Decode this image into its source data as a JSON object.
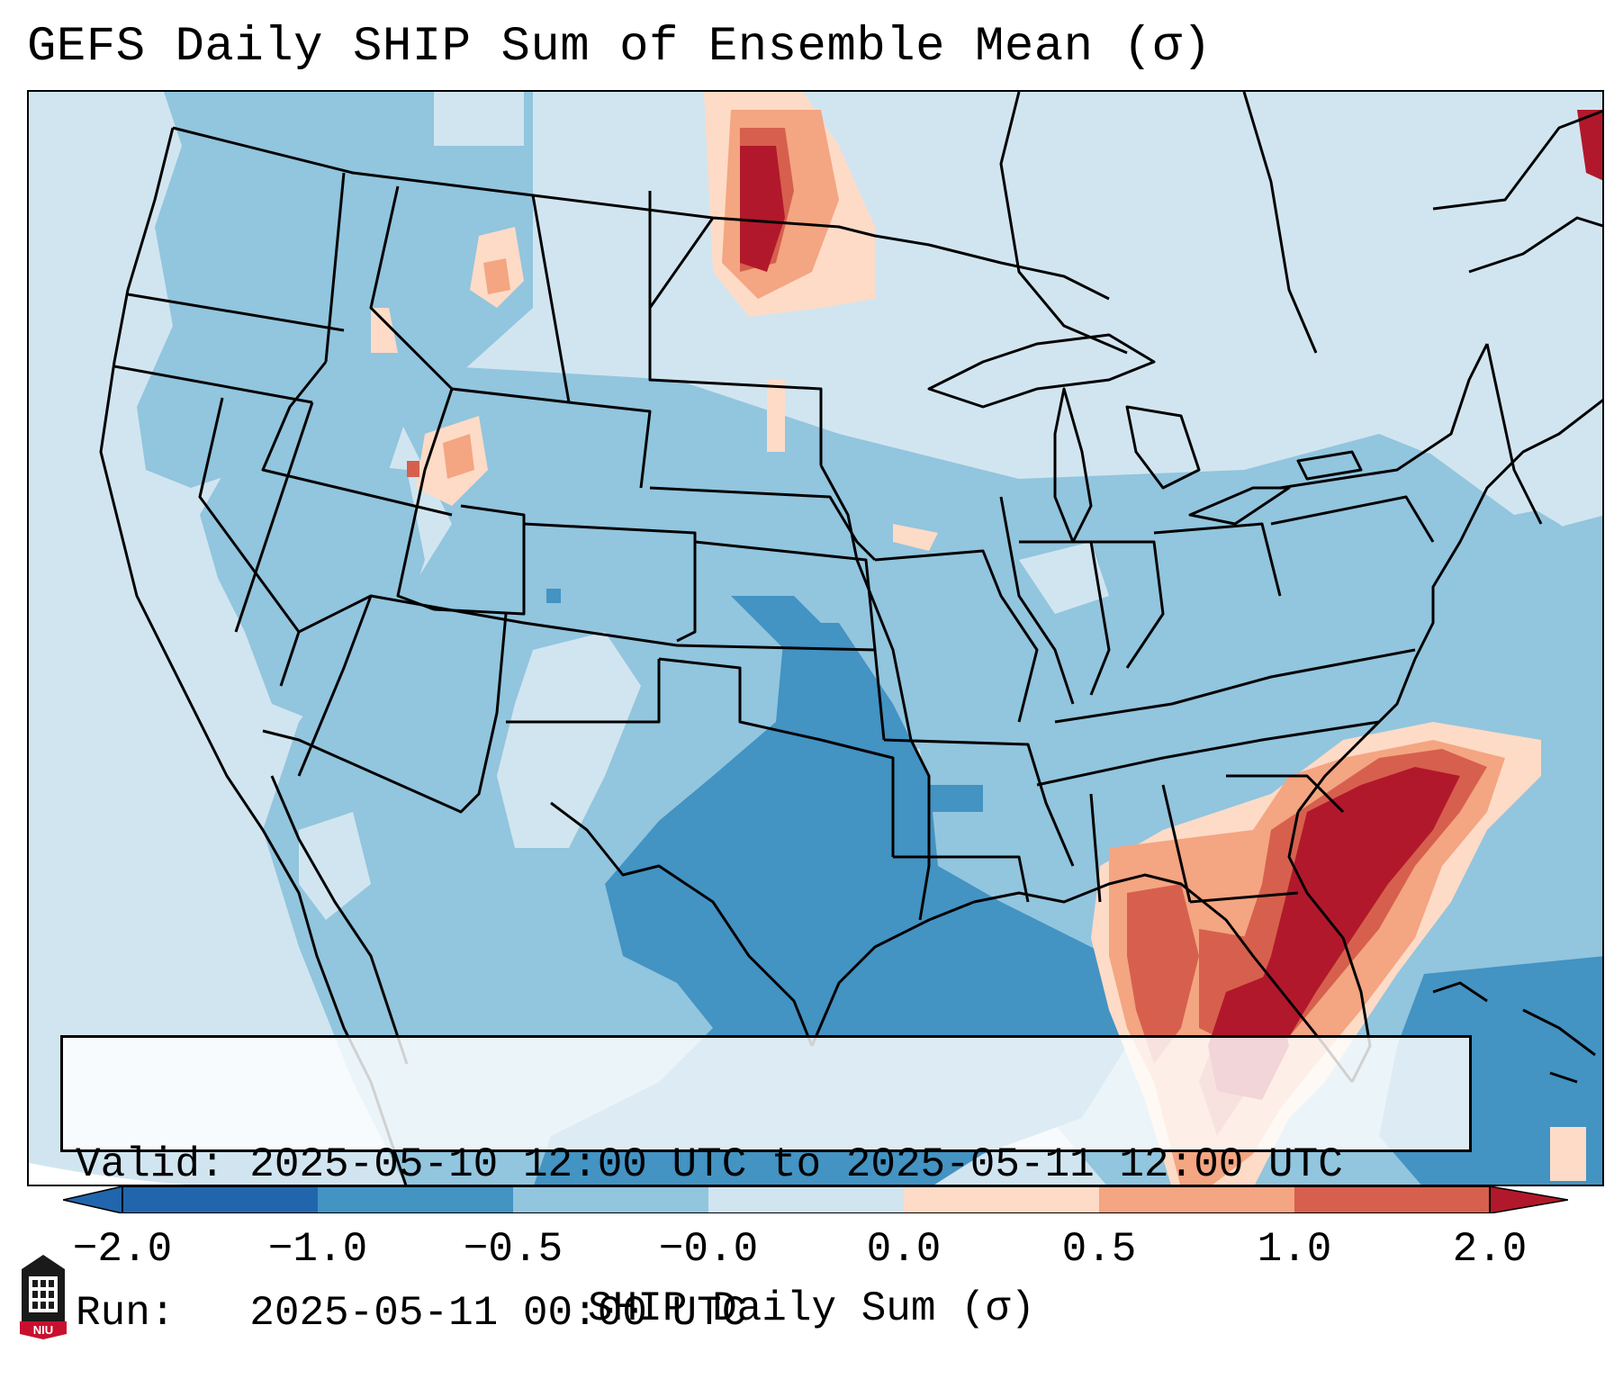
{
  "title": "GEFS Daily SHIP Sum of Ensemble Mean (σ)",
  "info": {
    "valid_line": "Valid: 2025-05-10 12:00 UTC to 2025-05-11 12:00 UTC",
    "run_line": "Run:   2025-05-11 00:00 UTC"
  },
  "colorbar": {
    "label": "SHIP Daily Sum (σ)",
    "ticks": [
      "−2.0",
      "−1.0",
      "−0.5",
      "−0.0",
      "0.0",
      "0.5",
      "1.0",
      "2.0"
    ],
    "colors": [
      "#2166ac",
      "#4393c3",
      "#92c5de",
      "#d1e5f0",
      "#fddbc7",
      "#f4a582",
      "#d6604d",
      "#b2182b"
    ]
  },
  "logo": {
    "text": "NIU",
    "icon": "niu-logo-icon"
  }
}
